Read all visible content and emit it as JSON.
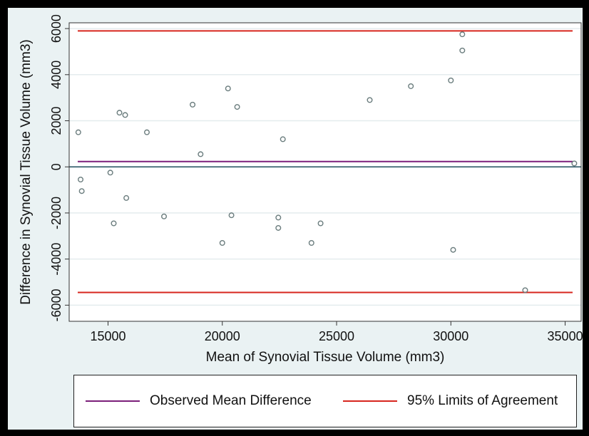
{
  "chart_data": {
    "type": "scatter",
    "xlabel": "Mean of Synovial Tissue Volume (mm3)",
    "ylabel": "Difference in Synovial Tissue Volume (mm3)",
    "xlim": [
      13300,
      35700
    ],
    "ylim": [
      -6700,
      6250
    ],
    "xticks": [
      15000,
      20000,
      25000,
      30000,
      35000
    ],
    "yticks": [
      -6000,
      -4000,
      -2000,
      0,
      2000,
      4000,
      6000
    ],
    "grid": "horizontal",
    "points": [
      {
        "x": 13700,
        "y": 1500
      },
      {
        "x": 13800,
        "y": -550
      },
      {
        "x": 13850,
        "y": -1050
      },
      {
        "x": 15100,
        "y": -250
      },
      {
        "x": 15250,
        "y": -2450
      },
      {
        "x": 15500,
        "y": 2350
      },
      {
        "x": 15750,
        "y": 2250
      },
      {
        "x": 15800,
        "y": -1350
      },
      {
        "x": 16700,
        "y": 1500
      },
      {
        "x": 17450,
        "y": -2150
      },
      {
        "x": 18700,
        "y": 2700
      },
      {
        "x": 19050,
        "y": 550
      },
      {
        "x": 20000,
        "y": -3300
      },
      {
        "x": 20250,
        "y": 3400
      },
      {
        "x": 20400,
        "y": -2100
      },
      {
        "x": 20650,
        "y": 2600
      },
      {
        "x": 22450,
        "y": -2200
      },
      {
        "x": 22450,
        "y": -2650
      },
      {
        "x": 22650,
        "y": 1200
      },
      {
        "x": 23900,
        "y": -3300
      },
      {
        "x": 24300,
        "y": -2450
      },
      {
        "x": 26450,
        "y": 2900
      },
      {
        "x": 28250,
        "y": 3500
      },
      {
        "x": 30000,
        "y": 3750
      },
      {
        "x": 30100,
        "y": -3600
      },
      {
        "x": 30500,
        "y": 5750
      },
      {
        "x": 30500,
        "y": 5050
      },
      {
        "x": 33250,
        "y": -5350
      },
      {
        "x": 35400,
        "y": 150
      }
    ],
    "zero_line": 0,
    "mean_difference": 230,
    "limits_of_agreement": [
      -5450,
      5900
    ],
    "legend_position": "bottom",
    "legend": [
      {
        "label": "Observed Mean Difference",
        "color": "#7b1e7a"
      },
      {
        "label": "95% Limits of Agreement",
        "color": "#d7261e"
      }
    ],
    "colors": {
      "marker": "#6b7d7e",
      "zero_line": "#1f4e5c",
      "mean_line": "#7b1e7a",
      "loa_line": "#d7261e",
      "background": "#eaf2f3",
      "plot_background": "#ffffff",
      "grid": "#e4ecee"
    }
  }
}
